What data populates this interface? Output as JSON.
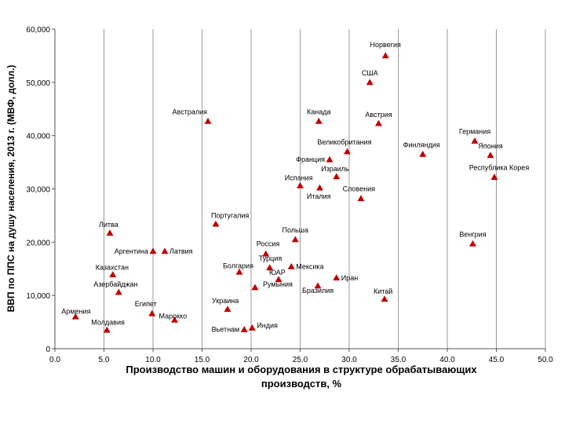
{
  "chart_data": {
    "type": "scatter",
    "xlabel_lines": [
      "Производство машин и оборудования в структуре обрабатывающих",
      "производств, %"
    ],
    "ylabel": "ВВП по ППС на душу населения, 2013 г. (МВФ, долл.)",
    "xlim": [
      0,
      50
    ],
    "ylim": [
      0,
      60000
    ],
    "x_ticks": [
      0,
      5,
      10,
      15,
      20,
      25,
      30,
      35,
      40,
      45,
      50
    ],
    "x_tick_labels": [
      "0.0",
      "5.0",
      "10.0",
      "15.0",
      "20.0",
      "25.0",
      "30.0",
      "35.0",
      "40.0",
      "45.0",
      "50.0"
    ],
    "y_ticks": [
      0,
      10000,
      20000,
      30000,
      40000,
      50000,
      60000
    ],
    "y_tick_labels": [
      "0",
      "10,000",
      "20,000",
      "30,000",
      "40,000",
      "50,000",
      "60,000"
    ],
    "grid": "vertical",
    "marker": "triangle",
    "marker_color": "#c00000",
    "points": [
      {
        "label": "Норвегия",
        "x": 33.7,
        "y": 55000
      },
      {
        "label": "США",
        "x": 32.1,
        "y": 50000
      },
      {
        "label": "Австралия",
        "x": 15.6,
        "y": 42700
      },
      {
        "label": "Канада",
        "x": 26.9,
        "y": 42700
      },
      {
        "label": "Австрия",
        "x": 33.0,
        "y": 42300
      },
      {
        "label": "Германия",
        "x": 42.8,
        "y": 39000
      },
      {
        "label": "Великобритания",
        "x": 29.8,
        "y": 37000
      },
      {
        "label": "Финляндия",
        "x": 37.5,
        "y": 36500
      },
      {
        "label": "Япония",
        "x": 44.4,
        "y": 36300
      },
      {
        "label": "Франция",
        "x": 28.0,
        "y": 35500
      },
      {
        "label": "Израиль",
        "x": 28.7,
        "y": 32300
      },
      {
        "label": "Республика Корея",
        "x": 44.8,
        "y": 32200
      },
      {
        "label": "Испания",
        "x": 25.0,
        "y": 30600
      },
      {
        "label": "Италия",
        "x": 27.0,
        "y": 30200
      },
      {
        "label": "Словения",
        "x": 31.2,
        "y": 28200
      },
      {
        "label": "Португалия",
        "x": 16.4,
        "y": 23400
      },
      {
        "label": "Литва",
        "x": 5.6,
        "y": 21700
      },
      {
        "label": "Польша",
        "x": 24.5,
        "y": 20500
      },
      {
        "label": "Венгрия",
        "x": 42.6,
        "y": 19700
      },
      {
        "label": "Аргентина",
        "x": 10.0,
        "y": 18300
      },
      {
        "label": "Латвия",
        "x": 11.2,
        "y": 18300
      },
      {
        "label": "Россия",
        "x": 21.5,
        "y": 17800
      },
      {
        "label": "Турция",
        "x": 21.9,
        "y": 15200
      },
      {
        "label": "Мексика",
        "x": 24.1,
        "y": 15400
      },
      {
        "label": "Болгария",
        "x": 18.8,
        "y": 14400
      },
      {
        "label": "Казахстан",
        "x": 5.9,
        "y": 13900
      },
      {
        "label": "ЮАР",
        "x": 22.8,
        "y": 13000
      },
      {
        "label": "Иран",
        "x": 28.7,
        "y": 13300
      },
      {
        "label": "Румыния",
        "x": 20.4,
        "y": 11500
      },
      {
        "label": "Бразилия",
        "x": 26.8,
        "y": 11800
      },
      {
        "label": "Азербайджан",
        "x": 6.5,
        "y": 10600
      },
      {
        "label": "Китай",
        "x": 33.6,
        "y": 9300
      },
      {
        "label": "Египет",
        "x": 9.9,
        "y": 6600
      },
      {
        "label": "Марокко",
        "x": 12.2,
        "y": 5400
      },
      {
        "label": "Украина",
        "x": 17.6,
        "y": 7400
      },
      {
        "label": "Армения",
        "x": 2.1,
        "y": 6000
      },
      {
        "label": "Молдавия",
        "x": 5.3,
        "y": 3500
      },
      {
        "label": "Вьетнам",
        "x": 19.3,
        "y": 3600
      },
      {
        "label": "Индия",
        "x": 20.1,
        "y": 3900
      }
    ]
  }
}
